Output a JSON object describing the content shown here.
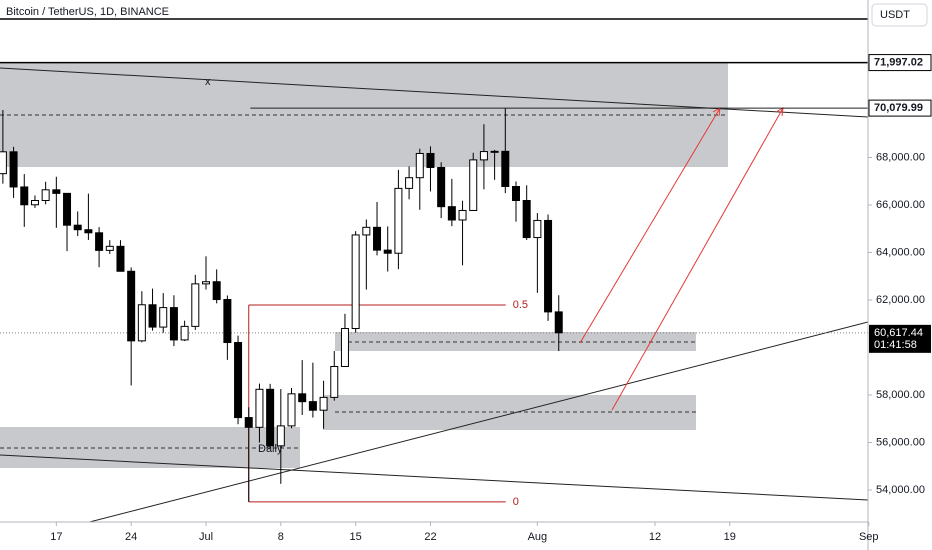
{
  "chart_data": {
    "type": "candlestick",
    "title": "Bitcoin / TetherUS, 1D, BINANCE",
    "currency": "USDT",
    "x": [
      12,
      13,
      14,
      15,
      16,
      17,
      18,
      19,
      20,
      21,
      22,
      23,
      24,
      25,
      26,
      27,
      28,
      29,
      30,
      31,
      32,
      33,
      34,
      35,
      36,
      37,
      38,
      39,
      40,
      41,
      42,
      43,
      44,
      45,
      46,
      47,
      48,
      49,
      50,
      51,
      52,
      53,
      54,
      55,
      56,
      57,
      58,
      59,
      60,
      61,
      62,
      63,
      64
    ],
    "open": [
      67320,
      68240,
      66760,
      66010,
      66190,
      66640,
      66490,
      65150,
      64960,
      64830,
      64090,
      64260,
      63210,
      60280,
      61800,
      60860,
      61680,
      60320,
      60890,
      62680,
      62770,
      62020,
      60210,
      57050,
      56640,
      58240,
      55860,
      56700,
      58050,
      57720,
      57360,
      57900,
      59200,
      60800,
      64740,
      65060,
      64100,
      63970,
      66700,
      67150,
      68170,
      67580,
      65930,
      65370,
      65770,
      67900,
      68250,
      68260,
      66780,
      66190,
      64630,
      65350,
      61500
    ],
    "high": [
      69999,
      68450,
      67300,
      66400,
      66980,
      67190,
      66490,
      65730,
      66480,
      65070,
      64520,
      64520,
      63370,
      62370,
      62480,
      62290,
      62200,
      61130,
      63060,
      63840,
      63290,
      62190,
      60500,
      57480,
      58480,
      58470,
      58250,
      58300,
      59470,
      59360,
      58600,
      59850,
      61420,
      64900,
      65390,
      66130,
      65100,
      67480,
      67630,
      68370,
      68470,
      67800,
      67100,
      66180,
      68200,
      69400,
      68320,
      70080,
      66990,
      66830,
      65660,
      65600,
      62200
    ],
    "low": [
      66900,
      66300,
      65080,
      65880,
      66030,
      65040,
      64060,
      64690,
      64530,
      63380,
      63940,
      63320,
      58400,
      60220,
      60710,
      60620,
      60060,
      60270,
      60740,
      62440,
      61860,
      59480,
      56770,
      53500,
      56000,
      55770,
      54260,
      56600,
      57160,
      57050,
      56580,
      57760,
      59200,
      60630,
      62440,
      63880,
      63200,
      63300,
      66240,
      65800,
      66570,
      65450,
      65110,
      63460,
      65750,
      66660,
      67060,
      66500,
      65300,
      64530,
      62300,
      61120,
      59850
    ],
    "close": [
      68240,
      66760,
      66010,
      66190,
      66640,
      66490,
      65150,
      64960,
      64830,
      64090,
      64260,
      63210,
      60280,
      61800,
      60860,
      61680,
      60320,
      60890,
      62680,
      62770,
      62020,
      60210,
      57050,
      56640,
      58240,
      55860,
      56700,
      58050,
      57720,
      57360,
      57900,
      59200,
      60800,
      64740,
      65060,
      64100,
      63970,
      66700,
      67150,
      68170,
      67580,
      65930,
      65370,
      65770,
      67900,
      68250,
      68260,
      66780,
      66190,
      64630,
      65350,
      61500,
      60620
    ],
    "up_color": "#ffffff",
    "down_color": "#000000",
    "xlim": [
      11.73,
      92.93
    ],
    "xticks": [
      17,
      24,
      {
        "value": 31,
        "label": "Jul"
      },
      {
        "value": 38,
        "label": "8"
      },
      {
        "value": 45,
        "label": "15"
      },
      {
        "value": 52,
        "label": "22"
      },
      {
        "value": 62,
        "label": "Aug"
      },
      {
        "value": 73,
        "label": "12"
      },
      {
        "value": 80,
        "label": "19"
      },
      {
        "value": 93,
        "label": "Sep"
      }
    ],
    "ylim": [
      52653,
      74632
    ],
    "yticks": [
      {
        "value": 54000,
        "label": "54,000.00"
      },
      {
        "value": 56000,
        "label": "56,000.00"
      },
      {
        "value": 58000,
        "label": "58,000.00"
      },
      {
        "value": 62000,
        "label": "62,000.00"
      },
      {
        "value": 64000,
        "label": "64,000.00"
      },
      {
        "value": 66000,
        "label": "66,000.00"
      },
      {
        "value": 68000,
        "label": "68,000.00"
      }
    ],
    "price_labels": [
      {
        "value": 71997.02,
        "label": "71,997.02"
      },
      {
        "value": 70079.99,
        "label": "70,079.99"
      }
    ],
    "last_price": {
      "value": 60617.44,
      "label": "60,617.44"
    },
    "countdown": "01:41:58",
    "fib_levels": [
      0.5,
      0
    ],
    "annotations": [
      "Daily",
      "x"
    ]
  }
}
